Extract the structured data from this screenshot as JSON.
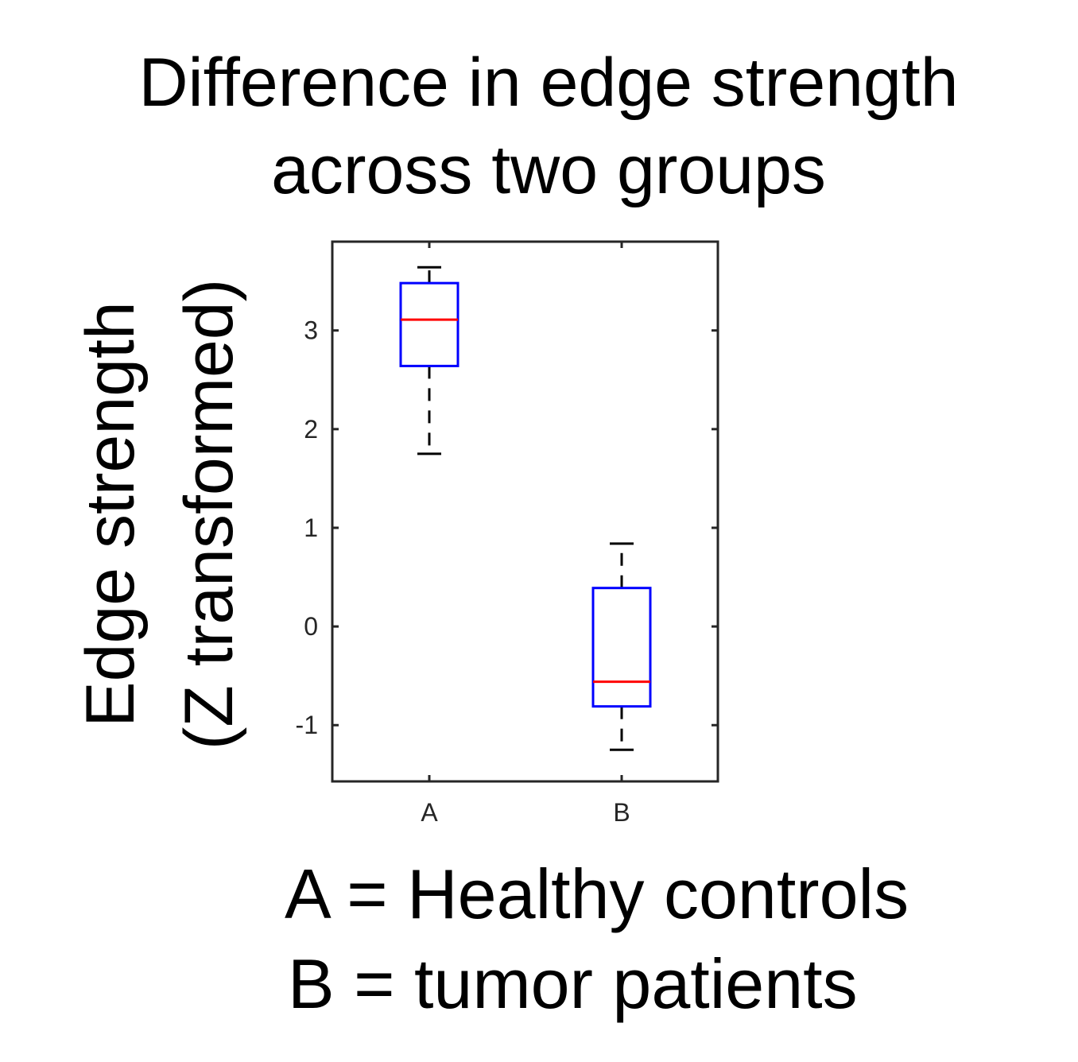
{
  "chart_data": {
    "type": "box",
    "title": [
      "Difference in edge strength",
      "across two groups"
    ],
    "ylabel": [
      "Edge strength",
      "(Z transformed)"
    ],
    "xlabel": "",
    "categories": [
      "A",
      "B"
    ],
    "ylim": [
      -1.57,
      3.9
    ],
    "yticks": [
      -1,
      0,
      1,
      2,
      3
    ],
    "boxes": [
      {
        "category": "A",
        "whisker_low": 1.75,
        "q1": 2.64,
        "median": 3.11,
        "q3": 3.48,
        "whisker_high": 3.64
      },
      {
        "category": "B",
        "whisker_low": -1.25,
        "q1": -0.81,
        "median": -0.56,
        "q3": 0.39,
        "whisker_high": 0.84
      }
    ],
    "grid": false,
    "colors": {
      "box": "#0000ff",
      "median": "#ff0000",
      "whisker": "#000000",
      "axes": "#262626"
    },
    "annotations": [
      "A = Healthy controls",
      "B = tumor patients"
    ]
  }
}
